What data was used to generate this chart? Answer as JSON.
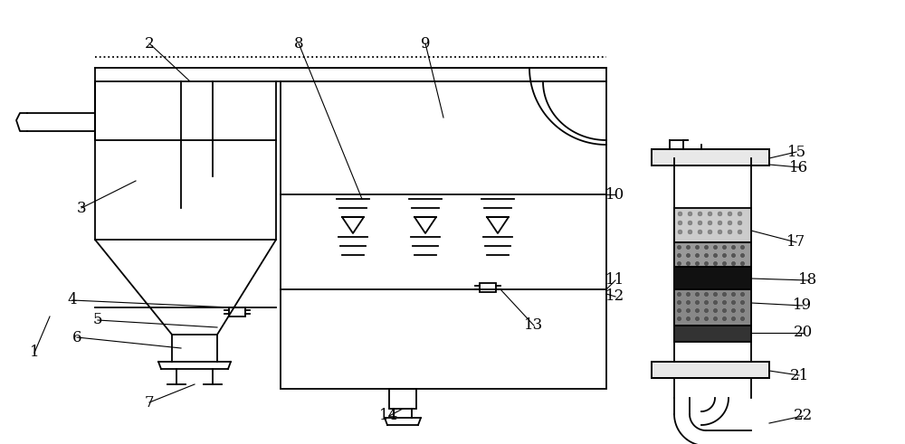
{
  "bg_color": "#ffffff",
  "line_color": "#000000",
  "label_color": "#000000",
  "lw": 1.3
}
